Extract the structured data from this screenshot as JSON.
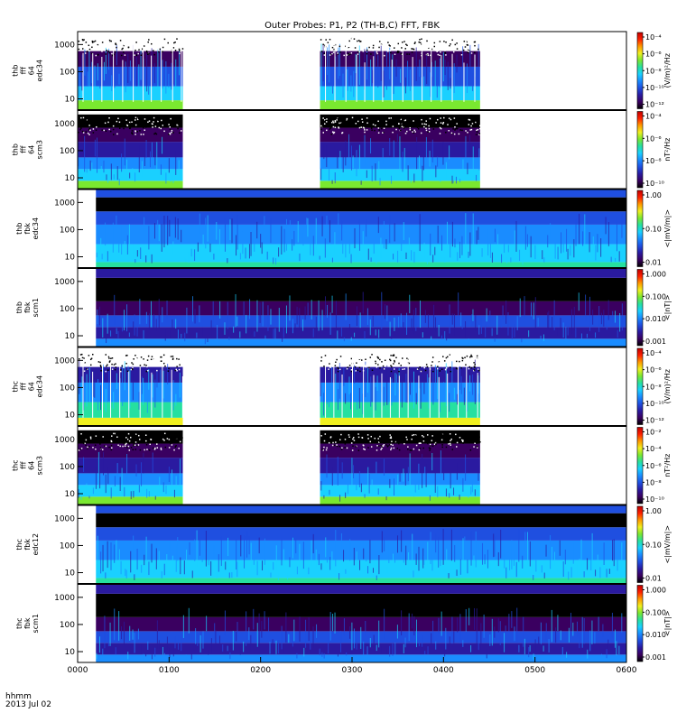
{
  "title": "Outer Probes: P1, P2 (TH-B,C) FFT, FBK",
  "time_axis": {
    "ticks": [
      "0000",
      "0100",
      "0200",
      "0300",
      "0400",
      "0500",
      "0600"
    ],
    "label_line1": "hhmm",
    "label_line2": "2013 Jul 02"
  },
  "colors": {
    "spectrogram_scale": [
      "#000000",
      "#3a0060",
      "#2a1aa0",
      "#1f4fe0",
      "#1a8cff",
      "#1ad0ff",
      "#26e0a0",
      "#7ae830",
      "#f0f020",
      "#ff9a00",
      "#ff2000",
      "#c00000"
    ]
  },
  "chart_data": [
    {
      "type": "heatmap",
      "ylabel": [
        "thb",
        "fff",
        "64",
        "edc34"
      ],
      "y_ticks": [
        "10",
        "100",
        "1000"
      ],
      "colorbar_label": "(V/m)²/Hz",
      "colorbar_ticks": [
        "10⁻¹²",
        "10⁻¹⁰",
        "10⁻⁸",
        "10⁻⁶",
        "10⁻⁴"
      ],
      "data_coverage_hhmm": [
        [
          "0000",
          "0115"
        ],
        [
          "0265",
          "0440"
        ]
      ],
      "style": "bursty"
    },
    {
      "type": "heatmap",
      "ylabel": [
        "thb",
        "fff",
        "64",
        "scm3"
      ],
      "y_ticks": [
        "10",
        "100",
        "1000"
      ],
      "colorbar_label": "nT²/Hz",
      "colorbar_ticks": [
        "10⁻¹⁰",
        "10⁻⁸",
        "10⁻⁶",
        "10⁻⁴"
      ],
      "data_coverage_hhmm": [
        [
          "0000",
          "0115"
        ],
        [
          "0265",
          "0440"
        ]
      ],
      "style": "scm"
    },
    {
      "type": "heatmap",
      "ylabel": [
        "thb",
        "fbk",
        "edc34"
      ],
      "y_ticks": [
        "10",
        "100",
        "1000"
      ],
      "colorbar_label": "<|mV/m|>",
      "colorbar_ticks": [
        "0.01",
        "0.10",
        "1.00"
      ],
      "data_coverage_hhmm": [
        [
          "0020",
          "0600"
        ]
      ],
      "style": "fbk_e"
    },
    {
      "type": "heatmap",
      "ylabel": [
        "thb",
        "fbk",
        "scm1"
      ],
      "y_ticks": [
        "10",
        "100",
        "1000"
      ],
      "colorbar_label": "<|nT|>",
      "colorbar_ticks": [
        "0.001",
        "0.010",
        "0.100",
        "1.000"
      ],
      "data_coverage_hhmm": [
        [
          "0020",
          "0600"
        ]
      ],
      "style": "fbk_b"
    },
    {
      "type": "heatmap",
      "ylabel": [
        "thc",
        "fff",
        "64",
        "edc34"
      ],
      "y_ticks": [
        "10",
        "100",
        "1000"
      ],
      "colorbar_label": "(V/m)²/Hz",
      "colorbar_ticks": [
        "10⁻¹²",
        "10⁻¹⁰",
        "10⁻⁸",
        "10⁻⁶",
        "10⁻⁴"
      ],
      "data_coverage_hhmm": [
        [
          "0000",
          "0115"
        ],
        [
          "0265",
          "0440"
        ]
      ],
      "style": "bursty2"
    },
    {
      "type": "heatmap",
      "ylabel": [
        "thc",
        "fff",
        "64",
        "scm3"
      ],
      "y_ticks": [
        "10",
        "100",
        "1000"
      ],
      "colorbar_label": "nT²/Hz",
      "colorbar_ticks": [
        "10⁻¹⁰",
        "10⁻⁸",
        "10⁻⁶",
        "10⁻⁴",
        "10⁻²"
      ],
      "data_coverage_hhmm": [
        [
          "0000",
          "0115"
        ],
        [
          "0265",
          "0440"
        ]
      ],
      "style": "scm"
    },
    {
      "type": "heatmap",
      "ylabel": [
        "thc",
        "fbk",
        "edc12"
      ],
      "y_ticks": [
        "10",
        "100",
        "1000"
      ],
      "colorbar_label": "<|mV/m|>",
      "colorbar_ticks": [
        "0.01",
        "0.10",
        "1.00"
      ],
      "data_coverage_hhmm": [
        [
          "0020",
          "0600"
        ]
      ],
      "style": "fbk_e"
    },
    {
      "type": "heatmap",
      "ylabel": [
        "thc",
        "fbk",
        "scm1"
      ],
      "y_ticks": [
        "10",
        "100",
        "1000"
      ],
      "colorbar_label": "<|nT|>",
      "colorbar_ticks": [
        "0.001",
        "0.010",
        "0.100",
        "1.000"
      ],
      "data_coverage_hhmm": [
        [
          "0020",
          "0600"
        ]
      ],
      "style": "fbk_b"
    }
  ]
}
